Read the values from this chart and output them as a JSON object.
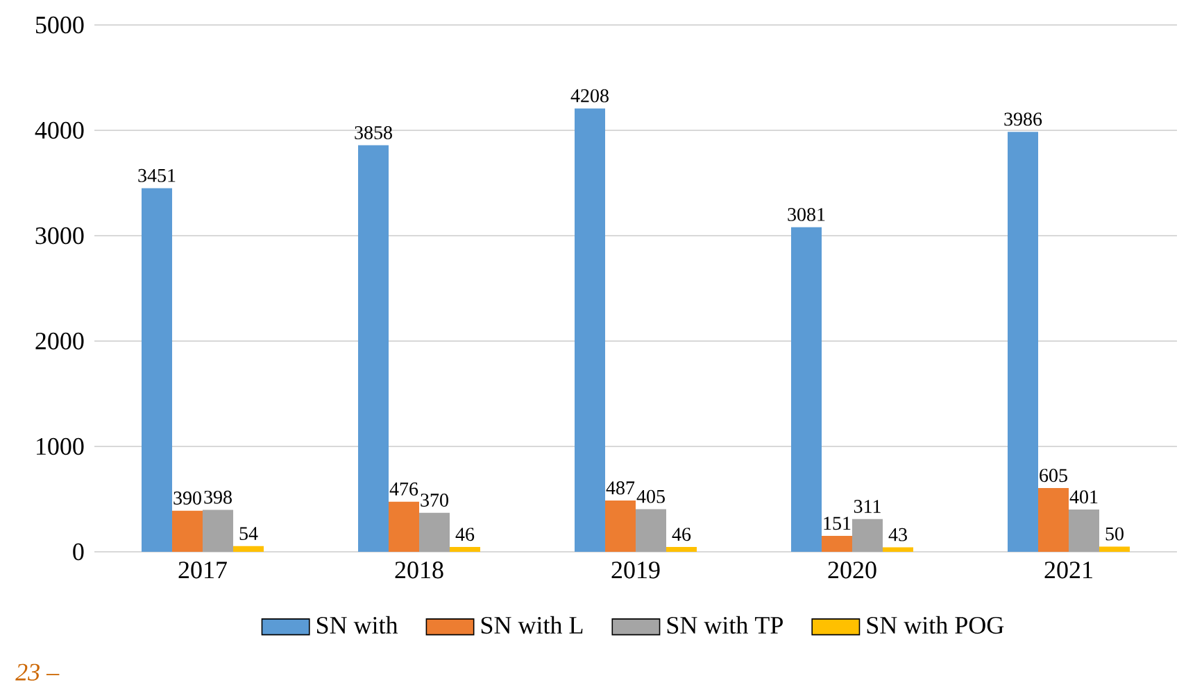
{
  "chart_data": {
    "type": "bar",
    "categories": [
      "2017",
      "2018",
      "2019",
      "2020",
      "2021"
    ],
    "series": [
      {
        "name": "SN with",
        "color": "#5b9bd5",
        "values": [
          3451,
          3858,
          4208,
          3081,
          3986
        ]
      },
      {
        "name": "SN with L",
        "color": "#ed7d31",
        "values": [
          390,
          476,
          487,
          151,
          605
        ]
      },
      {
        "name": "SN with TP",
        "color": "#a5a5a5",
        "values": [
          398,
          370,
          405,
          311,
          401
        ]
      },
      {
        "name": "SN with POG",
        "color": "#ffc000",
        "values": [
          54,
          46,
          46,
          43,
          50
        ]
      }
    ],
    "ylim": [
      0,
      5000
    ],
    "yticks": [
      0,
      1000,
      2000,
      3000,
      4000,
      5000
    ],
    "grid": "y",
    "legend": "bottom",
    "data_labels": true,
    "annotations": [
      "23 –"
    ]
  }
}
